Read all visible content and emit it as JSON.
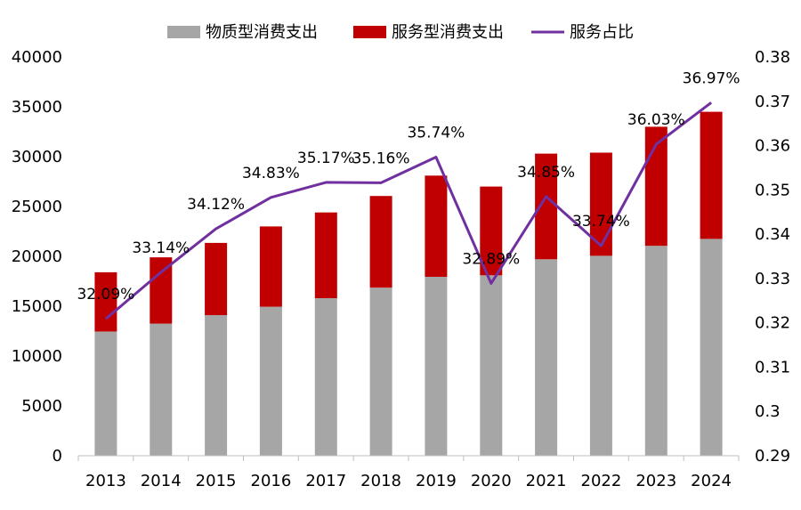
{
  "chart_data": {
    "type": "bar",
    "stacked": true,
    "categories": [
      "2013",
      "2014",
      "2015",
      "2016",
      "2017",
      "2018",
      "2019",
      "2020",
      "2021",
      "2022",
      "2023",
      "2024"
    ],
    "series": [
      {
        "name": "物质型消费支出",
        "kind": "bar",
        "axis": "left",
        "color": "#A6A6A6",
        "values": [
          12450,
          13250,
          14100,
          14950,
          15800,
          16850,
          17950,
          18100,
          19700,
          20050,
          21050,
          21750
        ]
      },
      {
        "name": "服务型消费支出",
        "kind": "bar",
        "axis": "left",
        "color": "#C00000",
        "values": [
          5950,
          6650,
          7250,
          8050,
          8600,
          9200,
          10150,
          8900,
          10600,
          10350,
          11950,
          12750
        ]
      },
      {
        "name": "服务占比",
        "kind": "line",
        "axis": "right",
        "color": "#7030A0",
        "values": [
          0.3209,
          0.3314,
          0.3412,
          0.3483,
          0.3517,
          0.3516,
          0.3574,
          0.3289,
          0.3485,
          0.3374,
          0.3603,
          0.3697
        ],
        "labels": [
          "32.09%",
          "33.14%",
          "34.12%",
          "34.83%",
          "35.17%",
          "35.16%",
          "35.74%",
          "32.89%",
          "34.85%",
          "33.74%",
          "36.03%",
          "36.97%"
        ]
      }
    ],
    "y_left": {
      "min": 0,
      "max": 40000,
      "step": 5000,
      "tick_labels": [
        "0",
        "5000",
        "10000",
        "15000",
        "20000",
        "25000",
        "30000",
        "35000",
        "40000"
      ]
    },
    "y_right": {
      "min": 0.29,
      "max": 0.38,
      "step": 0.01,
      "tick_labels": [
        "0.29",
        "0.3",
        "0.31",
        "0.32",
        "0.33",
        "0.34",
        "0.35",
        "0.36",
        "0.37",
        "0.38"
      ]
    },
    "legend_position": "top",
    "grid": false
  }
}
